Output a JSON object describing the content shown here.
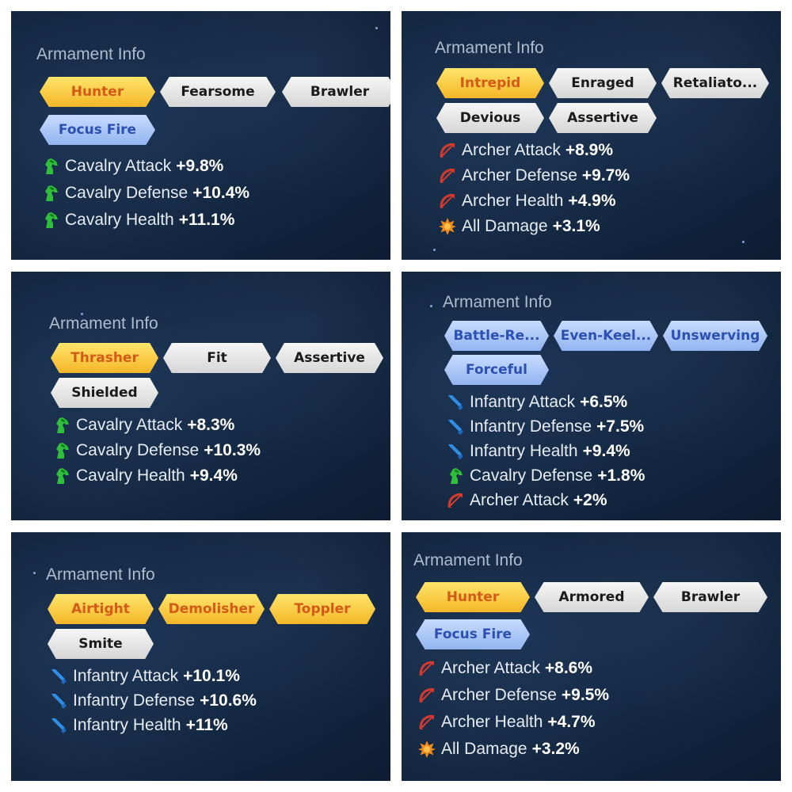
{
  "panel_title": "Armament Info",
  "panels": [
    {
      "tags": [
        {
          "label": "Hunter",
          "style": "gold"
        },
        {
          "label": "Fearsome",
          "style": "white"
        },
        {
          "label": "Brawler",
          "style": "white"
        },
        {
          "label": "Focus Fire",
          "style": "blue"
        }
      ],
      "stats": [
        {
          "icon": "cavalry-icon",
          "label": "Cavalry Attack",
          "value": "+9.8%"
        },
        {
          "icon": "cavalry-icon",
          "label": "Cavalry Defense",
          "value": "+10.4%"
        },
        {
          "icon": "cavalry-icon",
          "label": "Cavalry Health",
          "value": "+11.1%"
        }
      ]
    },
    {
      "tags": [
        {
          "label": "Intrepid",
          "style": "gold"
        },
        {
          "label": "Enraged",
          "style": "white"
        },
        {
          "label": "Retaliato...",
          "style": "white"
        },
        {
          "label": "Devious",
          "style": "white"
        },
        {
          "label": "Assertive",
          "style": "white"
        }
      ],
      "stats": [
        {
          "icon": "archer-icon",
          "label": "Archer Attack",
          "value": "+8.9%"
        },
        {
          "icon": "archer-icon",
          "label": "Archer Defense",
          "value": "+9.7%"
        },
        {
          "icon": "archer-icon",
          "label": "Archer Health",
          "value": "+4.9%"
        },
        {
          "icon": "all-damage-icon",
          "label": "All Damage",
          "value": "+3.1%"
        }
      ]
    },
    {
      "tags": [
        {
          "label": "Thrasher",
          "style": "gold"
        },
        {
          "label": "Fit",
          "style": "white"
        },
        {
          "label": "Assertive",
          "style": "white"
        },
        {
          "label": "Shielded",
          "style": "white"
        }
      ],
      "stats": [
        {
          "icon": "cavalry-icon",
          "label": "Cavalry Attack",
          "value": "+8.3%"
        },
        {
          "icon": "cavalry-icon",
          "label": "Cavalry Defense",
          "value": "+10.3%"
        },
        {
          "icon": "cavalry-icon",
          "label": "Cavalry Health",
          "value": "+9.4%"
        }
      ]
    },
    {
      "tags": [
        {
          "label": "Battle-Re...",
          "style": "blue"
        },
        {
          "label": "Even-Keel...",
          "style": "blue"
        },
        {
          "label": "Unswerving",
          "style": "blue"
        },
        {
          "label": "Forceful",
          "style": "blue"
        }
      ],
      "stats": [
        {
          "icon": "infantry-icon",
          "label": "Infantry Attack",
          "value": "+6.5%"
        },
        {
          "icon": "infantry-icon",
          "label": "Infantry Defense",
          "value": "+7.5%"
        },
        {
          "icon": "infantry-icon",
          "label": "Infantry Health",
          "value": "+9.4%"
        },
        {
          "icon": "cavalry-icon",
          "label": "Cavalry Defense",
          "value": "+1.8%"
        },
        {
          "icon": "archer-icon",
          "label": "Archer Attack",
          "value": "+2%"
        }
      ]
    },
    {
      "tags": [
        {
          "label": "Airtight",
          "style": "gold"
        },
        {
          "label": "Demolisher",
          "style": "gold"
        },
        {
          "label": "Toppler",
          "style": "gold"
        },
        {
          "label": "Smite",
          "style": "white"
        }
      ],
      "stats": [
        {
          "icon": "infantry-icon",
          "label": "Infantry Attack",
          "value": "+10.1%"
        },
        {
          "icon": "infantry-icon",
          "label": "Infantry Defense",
          "value": "+10.6%"
        },
        {
          "icon": "infantry-icon",
          "label": "Infantry Health",
          "value": "+11%"
        }
      ]
    },
    {
      "tags": [
        {
          "label": "Hunter",
          "style": "gold"
        },
        {
          "label": "Armored",
          "style": "white"
        },
        {
          "label": "Brawler",
          "style": "white"
        },
        {
          "label": "Focus Fire",
          "style": "blue"
        }
      ],
      "stats": [
        {
          "icon": "archer-icon",
          "label": "Archer Attack",
          "value": "+8.6%"
        },
        {
          "icon": "archer-icon",
          "label": "Archer Defense",
          "value": "+9.5%"
        },
        {
          "icon": "archer-icon",
          "label": "Archer Health",
          "value": "+4.7%"
        },
        {
          "icon": "all-damage-icon",
          "label": "All Damage",
          "value": "+3.2%"
        }
      ]
    }
  ]
}
